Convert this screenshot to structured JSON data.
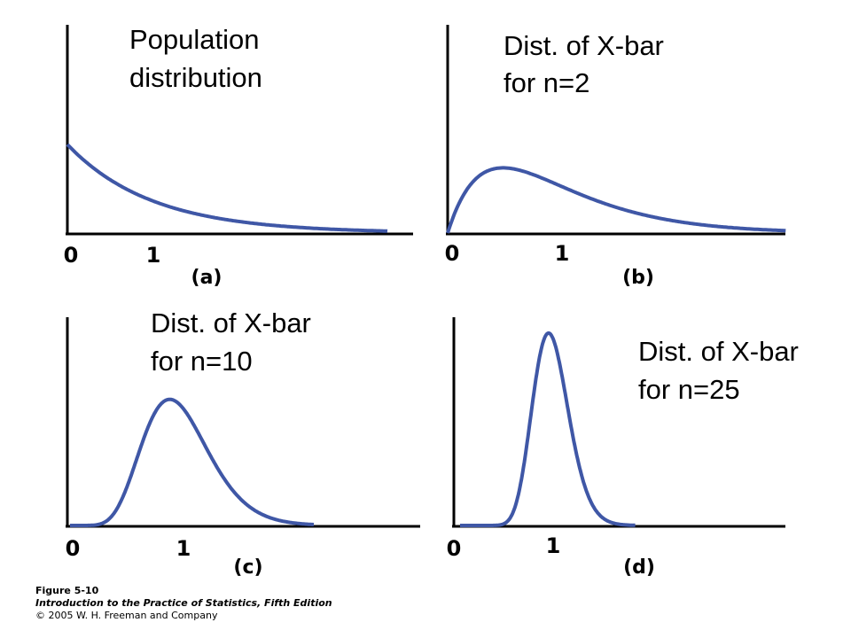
{
  "chart_data": [
    {
      "type": "line",
      "title": [
        "Population",
        "distribution"
      ],
      "panel": "(a)",
      "xticks": [
        "0",
        "1"
      ],
      "curve": "exponential",
      "color": "#3f57a6"
    },
    {
      "type": "line",
      "title": [
        "Dist. of X-bar",
        "for n=2"
      ],
      "panel": "(b)",
      "xticks": [
        "0",
        "1"
      ],
      "curve": "gamma-2",
      "color": "#3f57a6"
    },
    {
      "type": "line",
      "title": [
        "Dist. of X-bar",
        "for n=10"
      ],
      "panel": "(c)",
      "xticks": [
        "0",
        "1"
      ],
      "curve": "gamma-10",
      "color": "#3f57a6"
    },
    {
      "type": "line",
      "title": [
        "Dist. of X-bar",
        "for n=25"
      ],
      "panel": "(d)",
      "xticks": [
        "0",
        "1"
      ],
      "curve": "gamma-25",
      "color": "#3f57a6"
    }
  ],
  "caption": {
    "figure": "Figure 5-10",
    "book": "Introduction to the Practice of Statistics, Fifth Edition",
    "copyright": "© 2005 W. H. Freeman and Company"
  }
}
